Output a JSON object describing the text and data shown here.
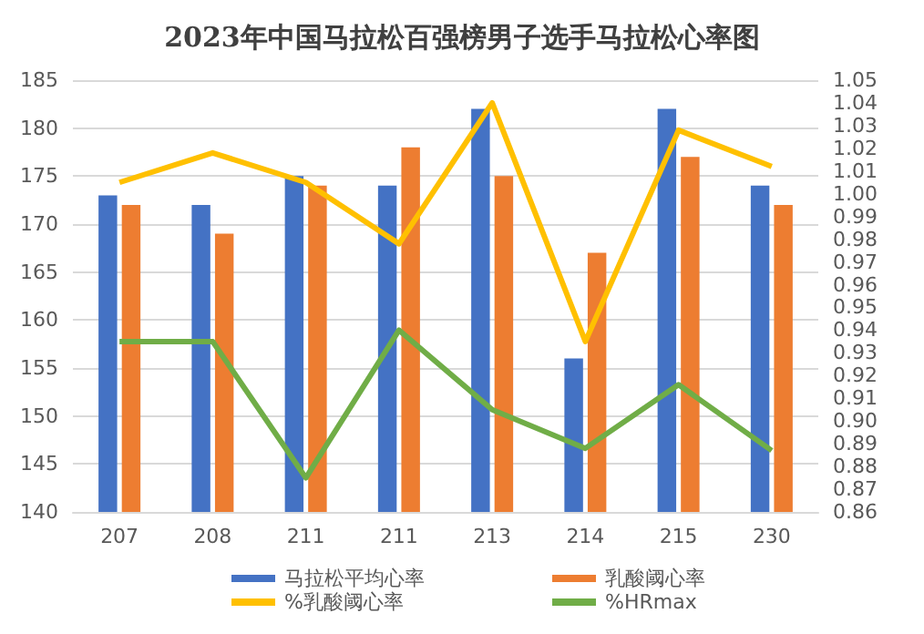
{
  "chart_data": {
    "type": "bar",
    "title": "2023年中国马拉松百强榜男子选手马拉松心率图",
    "categories": [
      "207",
      "208",
      "211",
      "211",
      "213",
      "214",
      "215",
      "230"
    ],
    "series": [
      {
        "name": "马拉松平均心率",
        "color": "#4472c4",
        "values": [
          173,
          172,
          175,
          174,
          182,
          156,
          182,
          174
        ]
      },
      {
        "name": "乳酸阈心率",
        "color": "#ed7d31",
        "values": [
          172,
          169,
          174,
          178,
          175,
          167,
          177,
          172
        ]
      },
      {
        "name": "%乳酸阈心率",
        "type": "line",
        "axis": "y2",
        "color": "#ffc000",
        "values": [
          1.005,
          1.018,
          1.005,
          0.978,
          1.04,
          0.935,
          1.028,
          1.012
        ]
      },
      {
        "name": "%HRmax",
        "type": "line",
        "axis": "y2",
        "color": "#70ad47",
        "values": [
          0.935,
          0.935,
          0.875,
          0.94,
          0.905,
          0.888,
          0.916,
          0.887
        ]
      }
    ],
    "ylim": [
      140,
      185
    ],
    "yticks": [
      140,
      145,
      150,
      155,
      160,
      165,
      170,
      175,
      180,
      185
    ],
    "y2lim": [
      0.86,
      1.05
    ],
    "y2ticks": [
      {
        "value": 0.86,
        "label": "0.86"
      },
      {
        "value": 0.87,
        "label": "0.87"
      },
      {
        "value": 0.88,
        "label": "0.88"
      },
      {
        "value": 0.89,
        "label": "0.89"
      },
      {
        "value": 0.9,
        "label": "0.90"
      },
      {
        "value": 0.91,
        "label": "0.91"
      },
      {
        "value": 0.92,
        "label": "0.92"
      },
      {
        "value": 0.93,
        "label": "0.93"
      },
      {
        "value": 0.94,
        "label": "0.94"
      },
      {
        "value": 0.95,
        "label": "0.95"
      },
      {
        "value": 0.96,
        "label": "0.96"
      },
      {
        "value": 0.97,
        "label": "0.97"
      },
      {
        "value": 0.98,
        "label": "0.98"
      },
      {
        "value": 0.99,
        "label": "0.99"
      },
      {
        "value": 1.0,
        "label": "1.00"
      },
      {
        "value": 1.01,
        "label": "1.01"
      },
      {
        "value": 1.02,
        "label": "1.02"
      },
      {
        "value": 1.03,
        "label": "1.03"
      },
      {
        "value": 1.04,
        "label": "1.04"
      },
      {
        "value": 1.05,
        "label": "1.05"
      }
    ],
    "grid": "y",
    "legend": "bottom",
    "marker": "none"
  }
}
